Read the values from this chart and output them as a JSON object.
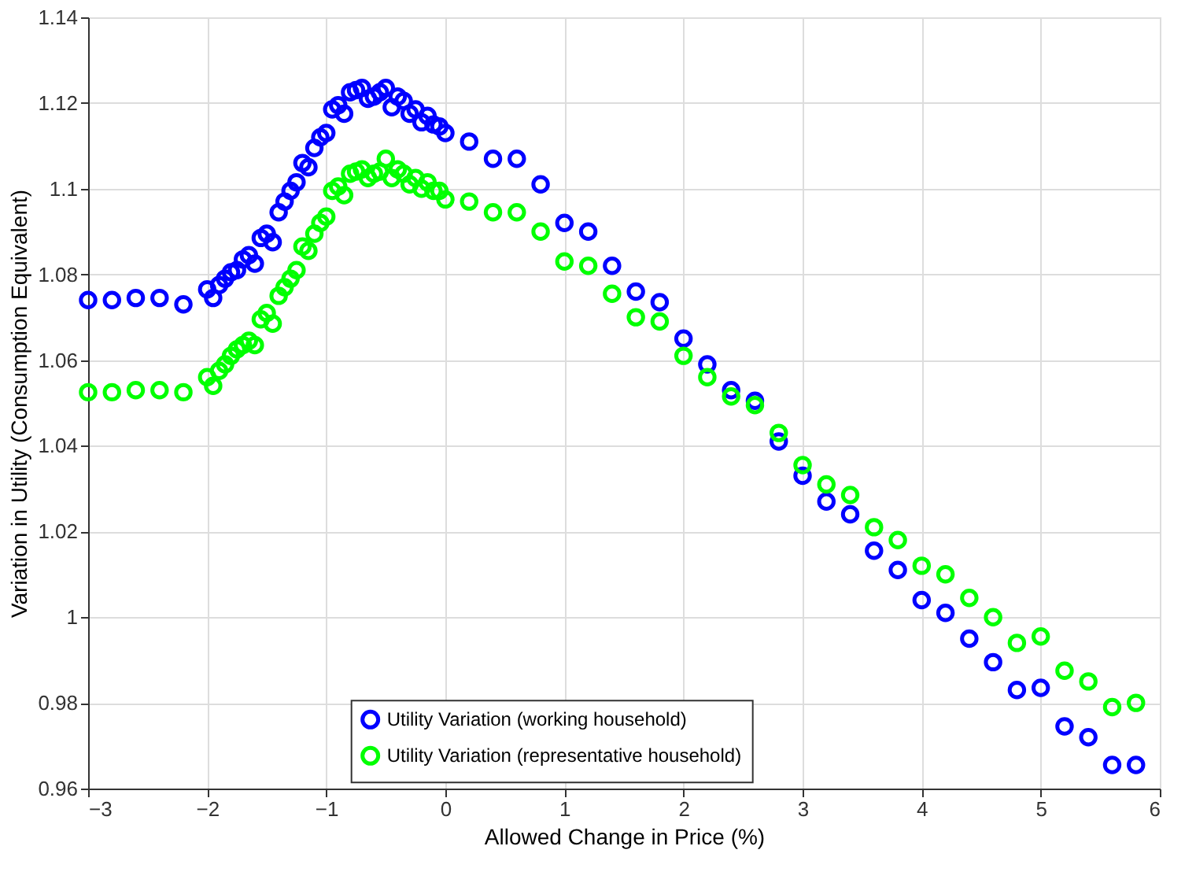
{
  "chart_data": {
    "type": "scatter",
    "xlabel": "Allowed Change in Price (%)",
    "ylabel": "Variation in Utility (Consumption Equivalent)",
    "x": [
      -3,
      -2.8,
      -2.6,
      -2.4,
      -2.2,
      -2.0,
      -1.95,
      -1.9,
      -1.85,
      -1.8,
      -1.75,
      -1.7,
      -1.65,
      -1.6,
      -1.55,
      -1.5,
      -1.45,
      -1.4,
      -1.35,
      -1.3,
      -1.25,
      -1.2,
      -1.15,
      -1.1,
      -1.05,
      -1.0,
      -0.95,
      -0.9,
      -0.85,
      -0.8,
      -0.75,
      -0.7,
      -0.65,
      -0.6,
      -0.55,
      -0.5,
      -0.45,
      -0.4,
      -0.35,
      -0.3,
      -0.25,
      -0.2,
      -0.15,
      -0.1,
      -0.05,
      0,
      0.2,
      0.4,
      0.6,
      0.8,
      1.0,
      1.2,
      1.4,
      1.6,
      1.8,
      2.0,
      2.2,
      2.4,
      2.6,
      2.8,
      3.0,
      3.2,
      3.4,
      3.6,
      3.8,
      4.0,
      4.2,
      4.4,
      4.6,
      4.8,
      5.0,
      5.2,
      5.4,
      5.6,
      5.8
    ],
    "series": [
      {
        "name": "Utility Variation (working household)",
        "color": "#0000ff",
        "values": [
          1.074,
          1.074,
          1.0745,
          1.0745,
          1.073,
          1.0765,
          1.0745,
          1.0775,
          1.079,
          1.0805,
          1.081,
          1.0835,
          1.0845,
          1.0825,
          1.0885,
          1.0895,
          1.0875,
          1.0945,
          1.097,
          1.0995,
          1.1015,
          1.106,
          1.105,
          1.1095,
          1.112,
          1.113,
          1.1185,
          1.1195,
          1.1175,
          1.1225,
          1.123,
          1.1235,
          1.121,
          1.1215,
          1.1225,
          1.1235,
          1.119,
          1.1215,
          1.1205,
          1.1175,
          1.1185,
          1.1155,
          1.117,
          1.115,
          1.1145,
          1.113,
          1.111,
          1.107,
          1.107,
          1.101,
          1.092,
          1.09,
          1.082,
          1.076,
          1.0735,
          1.065,
          1.059,
          1.053,
          1.0505,
          1.041,
          1.033,
          1.027,
          1.024,
          1.0155,
          1.011,
          1.004,
          1.001,
          0.995,
          0.9895,
          0.983,
          0.9835,
          0.9745,
          0.972,
          0.9655,
          0.9655
        ]
      },
      {
        "name": "Utility Variation (representative household)",
        "color": "#00ff00",
        "values": [
          1.0525,
          1.0525,
          1.053,
          1.053,
          1.0525,
          1.056,
          1.054,
          1.0575,
          1.059,
          1.061,
          1.0625,
          1.0635,
          1.0645,
          1.0635,
          1.0695,
          1.071,
          1.0685,
          1.075,
          1.077,
          1.079,
          1.081,
          1.0865,
          1.0855,
          1.0895,
          1.092,
          1.0935,
          1.0995,
          1.1005,
          1.0985,
          1.1035,
          1.104,
          1.1045,
          1.1025,
          1.1035,
          1.104,
          1.107,
          1.1025,
          1.1045,
          1.1035,
          1.101,
          1.1025,
          1.1,
          1.1015,
          1.0995,
          1.0995,
          1.0975,
          1.097,
          1.0945,
          1.0945,
          1.09,
          1.083,
          1.082,
          1.0755,
          1.07,
          1.069,
          1.061,
          1.056,
          1.0515,
          1.0495,
          1.043,
          1.0355,
          1.031,
          1.0285,
          1.021,
          1.018,
          1.012,
          1.01,
          1.0045,
          1.0,
          0.994,
          0.9955,
          0.9875,
          0.985,
          0.979,
          0.98
        ]
      }
    ],
    "xlim": [
      -3,
      6
    ],
    "xticks": [
      -3,
      -2,
      -1,
      0,
      1,
      2,
      3,
      4,
      5,
      6
    ],
    "ylim": [
      0.96,
      1.14
    ],
    "yticks": [
      0.96,
      0.98,
      1,
      1.02,
      1.04,
      1.06,
      1.08,
      1.1,
      1.12,
      1.14
    ],
    "grid": true,
    "legend": "bottom",
    "marker": "circle"
  }
}
